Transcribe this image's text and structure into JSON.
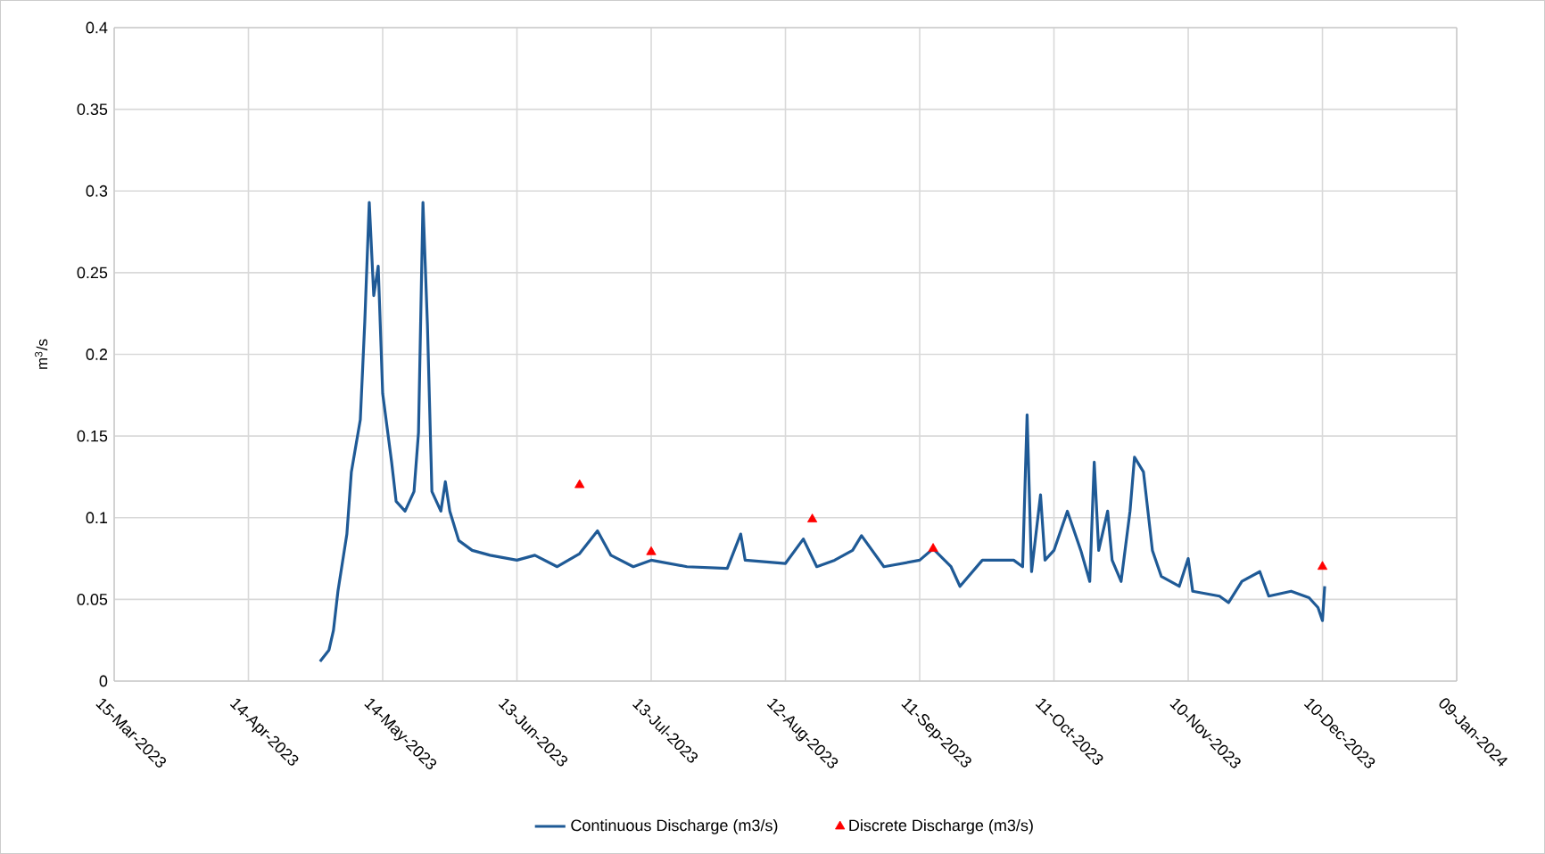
{
  "chart_data": {
    "type": "line",
    "ylabel": "m$^{3}$/s",
    "xlim": [
      "2023-03-15",
      "2024-01-09"
    ],
    "xticks": [
      {
        "value": "2023-03-15",
        "label": "15-Mar-2023"
      },
      {
        "value": "2023-04-14",
        "label": "14-Apr-2023"
      },
      {
        "value": "2023-05-14",
        "label": "14-May-2023"
      },
      {
        "value": "2023-06-13",
        "label": "13-Jun-2023"
      },
      {
        "value": "2023-07-13",
        "label": "13-Jul-2023"
      },
      {
        "value": "2023-08-12",
        "label": "12-Aug-2023"
      },
      {
        "value": "2023-09-11",
        "label": "11-Sep-2023"
      },
      {
        "value": "2023-10-11",
        "label": "11-Oct-2023"
      },
      {
        "value": "2023-11-10",
        "label": "10-Nov-2023"
      },
      {
        "value": "2023-12-10",
        "label": "10-Dec-2023"
      },
      {
        "value": "2024-01-09",
        "label": "09-Jan-2024"
      }
    ],
    "ylim": [
      0,
      0.4
    ],
    "yticks": [
      0,
      0.05,
      0.1,
      0.15,
      0.2,
      0.25,
      0.3,
      0.35,
      0.4
    ],
    "grid": true,
    "legend": "bottom",
    "series": [
      {
        "name": "Continuous Discharge (m3/s)",
        "color": "#1f5a96",
        "line_style": "solid",
        "marker": "none",
        "x": [
          "2023-04-30",
          "2023-05-02",
          "2023-05-03",
          "2023-05-04",
          "2023-05-06",
          "2023-05-07",
          "2023-05-09",
          "2023-05-10",
          "2023-05-11",
          "2023-05-12",
          "2023-05-13",
          "2023-05-14",
          "2023-05-16",
          "2023-05-17",
          "2023-05-19",
          "2023-05-21",
          "2023-05-22",
          "2023-05-23",
          "2023-05-24",
          "2023-05-25",
          "2023-05-27",
          "2023-05-28",
          "2023-05-29",
          "2023-05-31",
          "2023-06-03",
          "2023-06-07",
          "2023-06-13",
          "2023-06-17",
          "2023-06-22",
          "2023-06-27",
          "2023-07-01",
          "2023-07-04",
          "2023-07-09",
          "2023-07-13",
          "2023-07-21",
          "2023-07-30",
          "2023-08-02",
          "2023-08-03",
          "2023-08-12",
          "2023-08-16",
          "2023-08-19",
          "2023-08-23",
          "2023-08-27",
          "2023-08-29",
          "2023-09-03",
          "2023-09-11",
          "2023-09-14",
          "2023-09-18",
          "2023-09-20",
          "2023-09-25",
          "2023-10-02",
          "2023-10-04",
          "2023-10-05",
          "2023-10-06",
          "2023-10-08",
          "2023-10-09",
          "2023-10-11",
          "2023-10-14",
          "2023-10-17",
          "2023-10-19",
          "2023-10-20",
          "2023-10-21",
          "2023-10-23",
          "2023-10-24",
          "2023-10-26",
          "2023-10-28",
          "2023-10-29",
          "2023-10-31",
          "2023-11-02",
          "2023-11-04",
          "2023-11-08",
          "2023-11-10",
          "2023-11-11",
          "2023-11-17",
          "2023-11-19",
          "2023-11-22",
          "2023-11-26",
          "2023-11-28",
          "2023-12-03",
          "2023-12-07",
          "2023-12-09",
          "2023-12-10",
          "2023-12-10T12:00"
        ],
        "values": [
          0.012,
          0.019,
          0.031,
          0.055,
          0.09,
          0.128,
          0.16,
          0.22,
          0.293,
          0.236,
          0.254,
          0.176,
          0.134,
          0.11,
          0.104,
          0.116,
          0.152,
          0.293,
          0.218,
          0.116,
          0.104,
          0.122,
          0.104,
          0.086,
          0.08,
          0.077,
          0.074,
          0.077,
          0.07,
          0.078,
          0.092,
          0.077,
          0.07,
          0.074,
          0.07,
          0.069,
          0.09,
          0.074,
          0.072,
          0.087,
          0.07,
          0.074,
          0.08,
          0.089,
          0.07,
          0.074,
          0.081,
          0.07,
          0.058,
          0.074,
          0.074,
          0.07,
          0.163,
          0.067,
          0.114,
          0.074,
          0.08,
          0.104,
          0.08,
          0.061,
          0.134,
          0.08,
          0.104,
          0.074,
          0.061,
          0.104,
          0.137,
          0.128,
          0.08,
          0.064,
          0.058,
          0.075,
          0.055,
          0.052,
          0.048,
          0.061,
          0.067,
          0.052,
          0.055,
          0.051,
          0.045,
          0.037,
          0.058
        ]
      },
      {
        "name": "Discrete Discharge (m3/s)",
        "type": "scatter",
        "color": "#ff0000",
        "marker": "triangle",
        "x": [
          "2023-06-27",
          "2023-07-13",
          "2023-08-18",
          "2023-09-14",
          "2023-12-10"
        ],
        "values": [
          0.12,
          0.079,
          0.099,
          0.081,
          0.07
        ]
      }
    ]
  }
}
